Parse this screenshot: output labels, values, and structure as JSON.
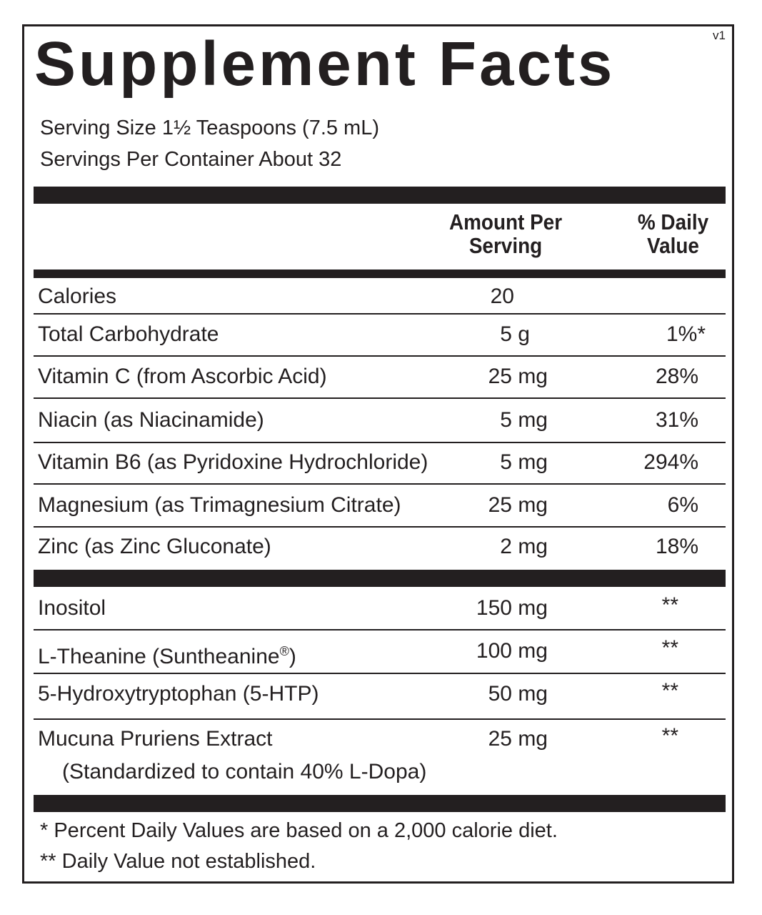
{
  "label": {
    "version": "v1",
    "title": "Supplement Facts",
    "serving_size": "Serving Size 1½ Teaspoons (7.5 mL)",
    "servings_per_container": "Servings Per Container About 32",
    "header_amount": [
      "Amount Per",
      "Serving"
    ],
    "header_dv": [
      "% Daily",
      "Value"
    ]
  },
  "nutrients": [
    {
      "name": "Calories",
      "amount": "20",
      "dv": ""
    },
    {
      "name": "Total Carbohydrate",
      "amount": "5 g",
      "dv": "1%*"
    },
    {
      "name": "Vitamin C (from Ascorbic Acid)",
      "amount": "25 mg",
      "dv": "28%"
    },
    {
      "name": "Niacin (as Niacinamide)",
      "amount": "5 mg",
      "dv": "31%"
    },
    {
      "name": "Vitamin B6 (as Pyridoxine Hydrochloride)",
      "amount": "5 mg",
      "dv": "294%"
    },
    {
      "name": "Magnesium (as Trimagnesium Citrate)",
      "amount": "25 mg",
      "dv": "6%"
    },
    {
      "name": "Zinc (as Zinc Gluconate)",
      "amount": "2 mg",
      "dv": "18%"
    }
  ],
  "ingredients": [
    {
      "name": "Inositol",
      "amount": "150 mg",
      "dv": "**"
    },
    {
      "name": "L-Theanine (Suntheanine",
      "reg": "®",
      "name_end": ")",
      "amount": "100 mg",
      "dv": "**"
    },
    {
      "name": "5-Hydroxytryptophan (5-HTP)",
      "amount": "50 mg",
      "dv": "**"
    },
    {
      "name": "Mucuna Pruriens Extract",
      "sub": "(Standardized to contain 40% L-Dopa)",
      "amount": "25 mg",
      "dv": "**"
    }
  ],
  "footnotes": [
    "* Percent Daily Values are based on a 2,000 calorie diet.",
    "** Daily Value not established."
  ]
}
